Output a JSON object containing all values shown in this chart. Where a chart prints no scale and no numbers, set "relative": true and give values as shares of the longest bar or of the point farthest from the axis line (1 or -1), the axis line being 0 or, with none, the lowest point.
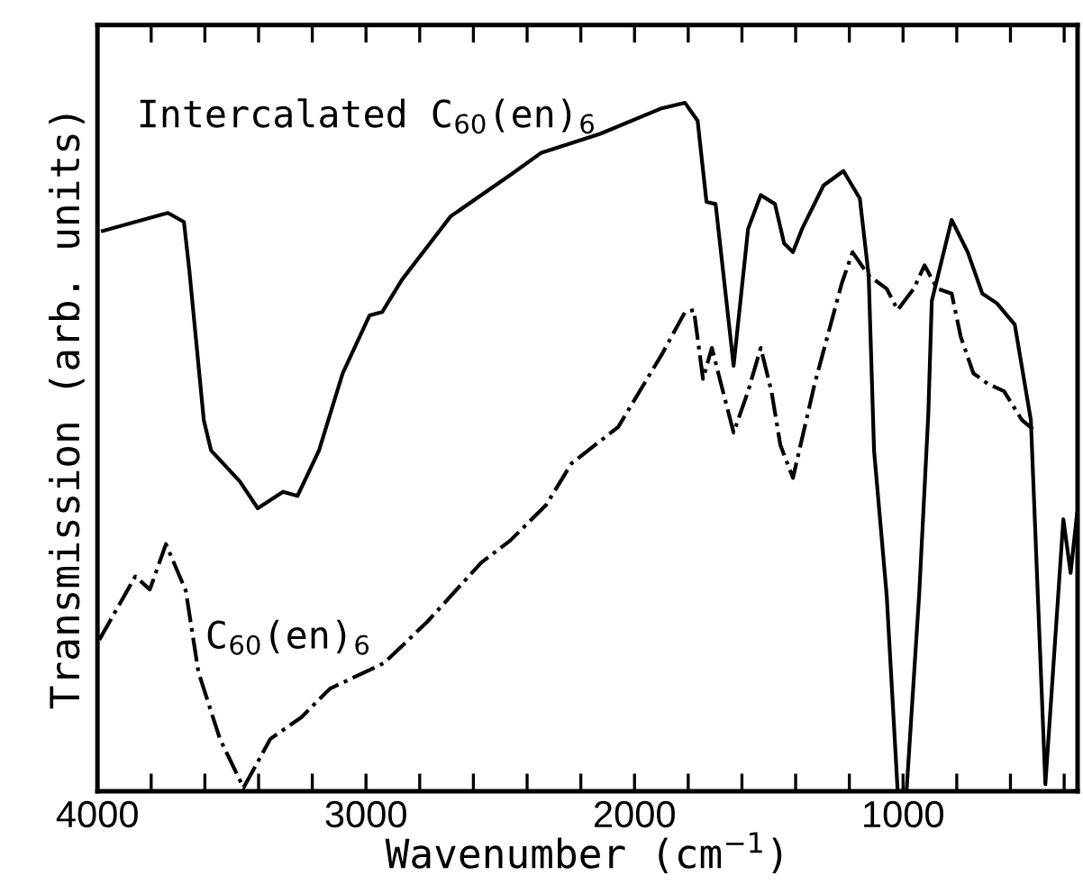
{
  "chart_data": {
    "type": "line",
    "relative": true,
    "xlabel": "Wavenumber (cm$^{−1}$)",
    "ylabel": "Transmission (arb. units)",
    "xlim": [
      4000,
      350
    ],
    "xticks": [
      4000,
      {
        "value": 3800,
        "label": null
      },
      {
        "value": 3600,
        "label": null
      },
      {
        "value": 3400,
        "label": null
      },
      {
        "value": 3200,
        "label": null
      },
      3000,
      {
        "value": 2800,
        "label": null
      },
      {
        "value": 2600,
        "label": null
      },
      {
        "value": 2400,
        "label": null
      },
      {
        "value": 2200,
        "label": null
      },
      2000,
      {
        "value": 1800,
        "label": null
      },
      {
        "value": 1600,
        "label": null
      },
      {
        "value": 1400,
        "label": null
      },
      {
        "value": 1200,
        "label": null
      },
      1000,
      {
        "value": 800,
        "label": null
      },
      {
        "value": 600,
        "label": null
      },
      {
        "value": 400,
        "label": null
      }
    ],
    "grid": false,
    "marker": "none",
    "annotations": [
      "Intercalated C$_{60}$(en)$_{6}$",
      "C$_{60}$(en)$_{6}$"
    ],
    "series": [
      {
        "color": "#000000",
        "line_style": "solid",
        "x": [
          3980,
          3738,
          3678,
          3658,
          3604,
          3577,
          3470,
          3403,
          3309,
          3255,
          3175,
          3087,
          2987,
          2940,
          2866,
          2685,
          2463,
          2349,
          2128,
          1899,
          1812,
          1765,
          1732,
          1698,
          1631,
          1577,
          1530,
          1477,
          1443,
          1410,
          1376,
          1296,
          1222,
          1161,
          1128,
          1108,
          1061,
          1020,
          987,
          940,
          906,
          893,
          819,
          759,
          705,
          651,
          584,
          524,
          470,
          403,
          376,
          352
        ],
        "values": [
          0.814,
          0.84,
          0.827,
          0.757,
          0.539,
          0.495,
          0.45,
          0.411,
          0.435,
          0.429,
          0.495,
          0.607,
          0.691,
          0.696,
          0.743,
          0.835,
          0.895,
          0.927,
          0.955,
          0.992,
          1.0,
          0.974,
          0.856,
          0.853,
          0.618,
          0.817,
          0.866,
          0.853,
          0.796,
          0.783,
          0.817,
          0.88,
          0.901,
          0.861,
          0.749,
          0.495,
          0.285,
          0.0,
          0.0,
          0.285,
          0.547,
          0.712,
          0.83,
          0.783,
          0.723,
          0.709,
          0.678,
          0.539,
          0.01,
          0.395,
          0.317,
          0.403
        ]
      },
      {
        "color": "#000000",
        "line_style": "dashdot",
        "x": [
          3993,
          3859,
          3805,
          3745,
          3671,
          3624,
          3544,
          3456,
          3356,
          3242,
          3134,
          2933,
          2772,
          2571,
          2463,
          2329,
          2235,
          2061,
          1899,
          1812,
          1779,
          1745,
          1712,
          1678,
          1631,
          1577,
          1530,
          1490,
          1457,
          1410,
          1329,
          1228,
          1188,
          1128,
          1061,
          1020,
          960,
          920,
          873,
          819,
          785,
          738,
          685,
          624,
          557,
          517
        ],
        "values": [
          0.22,
          0.312,
          0.293,
          0.359,
          0.291,
          0.173,
          0.076,
          0.005,
          0.076,
          0.107,
          0.149,
          0.186,
          0.246,
          0.332,
          0.364,
          0.416,
          0.476,
          0.529,
          0.634,
          0.696,
          0.699,
          0.599,
          0.644,
          0.592,
          0.521,
          0.581,
          0.644,
          0.581,
          0.503,
          0.455,
          0.592,
          0.738,
          0.783,
          0.749,
          0.73,
          0.699,
          0.73,
          0.764,
          0.73,
          0.723,
          0.66,
          0.607,
          0.592,
          0.581,
          0.539,
          0.526
        ]
      }
    ]
  }
}
